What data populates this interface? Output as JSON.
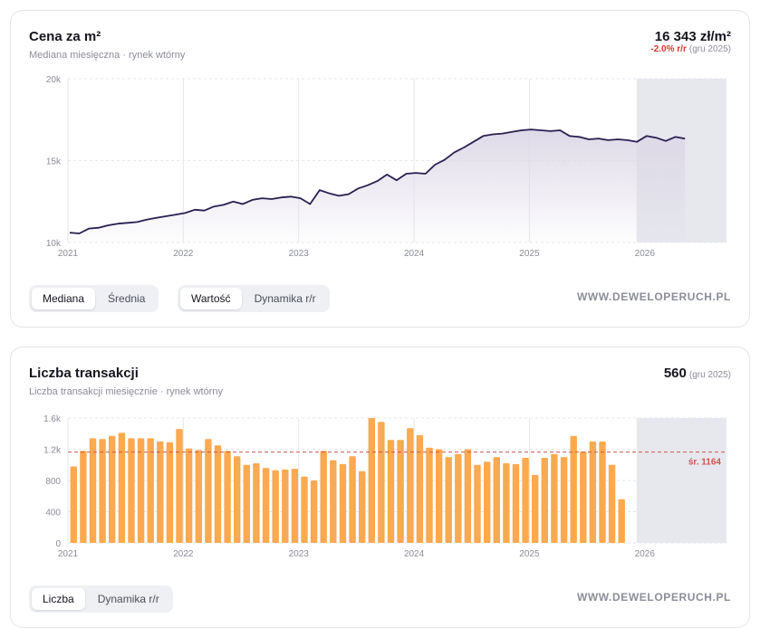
{
  "price": {
    "title": "Cena za m²",
    "subtitle": "Mediana miesięczna · rynek wtórny",
    "value": "16 343 zł/m²",
    "change": "-2.0% r/r",
    "change_note": "(gru 2025)",
    "toggle_stat": [
      "Mediana",
      "Średnia"
    ],
    "toggle_mode": [
      "Wartość",
      "Dynamika r/r"
    ],
    "brand": "WWW.DEWELOPERUCH.PL",
    "colors": {
      "line": "#2a1f4f",
      "fill": "#dcd7e6",
      "forecast": "#e6e8ee",
      "grid": "#e6e7ec"
    }
  },
  "transactions": {
    "title": "Liczba transakcji",
    "subtitle": "Liczba transakcji miesięcznie · rynek wtórny",
    "value": "560",
    "value_note": "(gru 2025)",
    "avg_label": "śr. 1164",
    "toggle_mode": [
      "Liczba",
      "Dynamika r/r"
    ],
    "brand": "WWW.DEWELOPERUCH.PL",
    "colors": {
      "bar": "#fca94f",
      "avg": "#c9584f",
      "forecast": "#e6e8ee",
      "grid": "#e6e7ec"
    }
  },
  "chart_data": [
    {
      "type": "area",
      "title": "Cena za m²",
      "subtitle": "Mediana miesięczna · rynek wtórny",
      "xlabel": "",
      "ylabel": "",
      "x_ticks": [
        "2021",
        "2022",
        "2023",
        "2024",
        "2025",
        "2026"
      ],
      "y_ticks": [
        "10k",
        "15k",
        "20k"
      ],
      "ylim": [
        10000,
        20000
      ],
      "start": "2021-01",
      "forecast_shaded": "2026",
      "grid": true,
      "values": [
        10600,
        10550,
        10850,
        10900,
        11050,
        11150,
        11200,
        11250,
        11400,
        11500,
        11600,
        11700,
        11800,
        12000,
        11950,
        12200,
        12300,
        12500,
        12350,
        12600,
        12700,
        12650,
        12750,
        12800,
        12700,
        12350,
        13200,
        13000,
        12850,
        12950,
        13300,
        13500,
        13750,
        14150,
        13800,
        14200,
        14250,
        14200,
        14750,
        15050,
        15500,
        15800,
        16150,
        16500,
        16600,
        16650,
        16750,
        16850,
        16900,
        16850,
        16800,
        16850,
        16500,
        16450,
        16300,
        16350,
        16250,
        16300,
        16250,
        16150,
        16500,
        16400,
        16200,
        16450,
        16343
      ]
    },
    {
      "type": "bar",
      "title": "Liczba transakcji",
      "subtitle": "Liczba transakcji miesięcznie · rynek wtórny",
      "xlabel": "",
      "ylabel": "",
      "x_ticks": [
        "2021",
        "2022",
        "2023",
        "2024",
        "2025",
        "2026"
      ],
      "y_ticks": [
        "0",
        "400",
        "800",
        "1.2k",
        "1.6k"
      ],
      "ylim": [
        0,
        1600
      ],
      "start": "2021-01",
      "forecast_shaded": "2026",
      "grid": true,
      "average": 1164,
      "values": [
        980,
        1180,
        1340,
        1330,
        1370,
        1410,
        1340,
        1340,
        1340,
        1300,
        1290,
        1460,
        1210,
        1190,
        1330,
        1250,
        1180,
        1110,
        1000,
        1020,
        960,
        930,
        940,
        950,
        850,
        800,
        1180,
        1060,
        1010,
        1110,
        920,
        1600,
        1550,
        1320,
        1320,
        1470,
        1380,
        1220,
        1200,
        1100,
        1140,
        1200,
        1000,
        1040,
        1100,
        1020,
        1010,
        1090,
        870,
        1090,
        1140,
        1100,
        1370,
        1170,
        1300,
        1300,
        1000,
        560
      ]
    }
  ]
}
